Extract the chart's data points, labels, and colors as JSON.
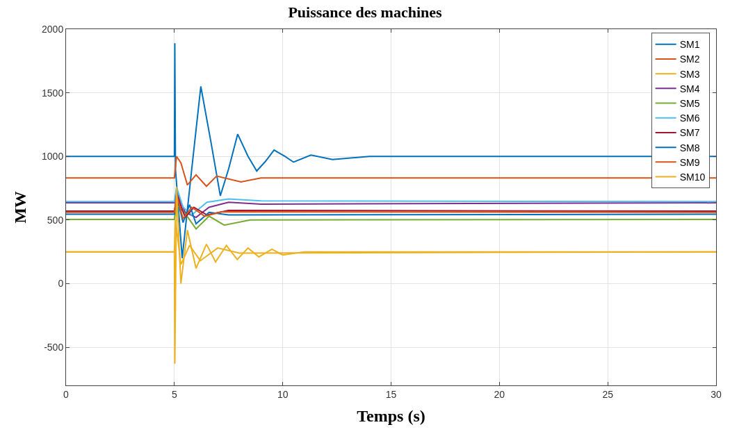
{
  "chart_data": {
    "type": "line",
    "title": "Puissance des machines",
    "xlabel": "Temps (s)",
    "ylabel": "MW",
    "xlim": [
      0,
      30
    ],
    "xticks": [
      0,
      5,
      10,
      15,
      20,
      25,
      30
    ],
    "ylim": [
      -800,
      2000
    ],
    "yticks": [
      -500,
      0,
      500,
      1000,
      1500,
      2000
    ],
    "grid": true,
    "legend": "top right",
    "line_style": "solid",
    "marker": "none",
    "series": [
      {
        "name": "SM1",
        "color": "#0072bd",
        "x": [
          0,
          5,
          5.02,
          5.05,
          5.36,
          5.8,
          6.22,
          6.7,
          7.12,
          7.5,
          7.92,
          8.4,
          8.8,
          9.2,
          9.6,
          10.1,
          10.5,
          11.3,
          12.3,
          14,
          30
        ],
        "values": [
          1000,
          1000,
          1890,
          900,
          200,
          900,
          1550,
          1100,
          690,
          900,
          1175,
          1000,
          885,
          960,
          1050,
          1000,
          955,
          1010,
          975,
          1000,
          1000
        ]
      },
      {
        "name": "SM2",
        "color": "#d95319",
        "x": [
          0,
          5,
          5.1,
          5.3,
          5.6,
          6.0,
          6.48,
          6.95,
          8.07,
          9,
          30
        ],
        "values": [
          830,
          830,
          1000,
          950,
          775,
          855,
          765,
          845,
          800,
          830,
          830
        ]
      },
      {
        "name": "SM3",
        "color": "#edb120",
        "x": [
          0,
          5,
          5.05,
          5.3,
          5.7,
          6.2,
          7,
          8,
          30
        ],
        "values": [
          250,
          250,
          500,
          150,
          300,
          180,
          280,
          240,
          250
        ]
      },
      {
        "name": "SM4",
        "color": "#7e2f8e",
        "x": [
          0,
          5,
          5.1,
          5.5,
          6.0,
          6.6,
          7.5,
          9,
          30
        ],
        "values": [
          635,
          635,
          720,
          560,
          520,
          600,
          640,
          625,
          635
        ]
      },
      {
        "name": "SM5",
        "color": "#77ac30",
        "x": [
          0,
          5,
          5.1,
          5.5,
          6.0,
          6.6,
          7.3,
          8.5,
          30
        ],
        "values": [
          505,
          505,
          620,
          550,
          430,
          530,
          460,
          500,
          505
        ]
      },
      {
        "name": "SM6",
        "color": "#4dbeee",
        "x": [
          0,
          5,
          5.1,
          5.4,
          5.8,
          6.5,
          7.5,
          9,
          30
        ],
        "values": [
          645,
          645,
          760,
          600,
          540,
          640,
          665,
          650,
          645
        ]
      },
      {
        "name": "SM7",
        "color": "#a2142f",
        "x": [
          0,
          5,
          5.15,
          5.5,
          5.9,
          6.5,
          7.5,
          30
        ],
        "values": [
          570,
          570,
          680,
          520,
          600,
          540,
          575,
          570
        ]
      },
      {
        "name": "SM8",
        "color": "#0072bd",
        "x": [
          0,
          5,
          5.1,
          5.4,
          5.7,
          6.0,
          6.6,
          7.5,
          30
        ],
        "values": [
          545,
          545,
          700,
          480,
          620,
          470,
          560,
          540,
          545
        ]
      },
      {
        "name": "SM9",
        "color": "#d95319",
        "x": [
          0,
          5,
          5.1,
          5.4,
          5.8,
          6.4,
          7.2,
          30
        ],
        "values": [
          560,
          560,
          700,
          510,
          600,
          530,
          565,
          560
        ]
      },
      {
        "name": "SM10",
        "color": "#edb120",
        "x": [
          0,
          5,
          5.02,
          5.1,
          5.3,
          5.6,
          6.0,
          6.48,
          6.9,
          7.4,
          7.9,
          8.4,
          8.9,
          9.5,
          10,
          11,
          30
        ],
        "values": [
          250,
          250,
          -630,
          760,
          0,
          420,
          120,
          310,
          170,
          300,
          190,
          280,
          210,
          270,
          225,
          250,
          250
        ]
      }
    ]
  }
}
